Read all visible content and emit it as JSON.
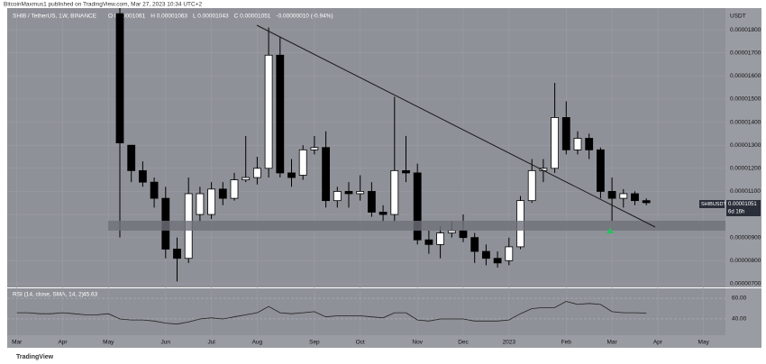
{
  "header": {
    "publisher": "BitcoinMaxmus1 published on TradingView.com, Mar 27, 2023 10:34 UTC+2"
  },
  "footer": {
    "brand": "TradingView"
  },
  "chart_data": {
    "type": "candlestick",
    "title": "SHIB / TetherUS, 1W, BINANCE",
    "ohlc_legend": [
      "O 0.00001061",
      "H 0.00001063",
      "L 0.00001043",
      "C 0.00001051",
      "-0.00000010 (-0.94%)"
    ],
    "currency": "USDT",
    "price_tag": {
      "symbol": "SHIBUSDT",
      "price": "0.00001051",
      "countdown": "6d 16h"
    },
    "up_color": "#ffffff",
    "down_color": "#000000",
    "background": "#8f9198",
    "categories": [
      "Mar",
      null,
      null,
      null,
      "Apr",
      null,
      null,
      null,
      "May",
      null,
      null,
      null,
      null,
      "Jun",
      null,
      null,
      null,
      "Jul",
      null,
      null,
      null,
      "Aug",
      null,
      null,
      null,
      null,
      "Sep",
      null,
      null,
      null,
      "Oct",
      null,
      null,
      null,
      null,
      "Nov",
      null,
      null,
      null,
      "Dec",
      null,
      null,
      null,
      "2023",
      null,
      null,
      null,
      null,
      "Feb",
      null,
      null,
      null,
      "Mar",
      null,
      null,
      null,
      "Apr",
      null,
      null,
      null,
      "May",
      null
    ],
    "open": [
      null,
      null,
      null,
      null,
      null,
      null,
      null,
      null,
      null,
      1.87e-05,
      1.3e-05,
      1.19e-05,
      1.14e-05,
      1.07e-05,
      8.5e-06,
      8.1e-06,
      1e-05,
      1e-05,
      1.11e-05,
      1.07e-05,
      1.15e-05,
      1.16e-05,
      1.2e-05,
      1.69e-05,
      1.18e-05,
      1.17e-05,
      1.28e-05,
      1.29e-05,
      1.06e-05,
      1.1e-05,
      1.09e-05,
      1.1e-05,
      1.01e-05,
      1e-05,
      1.19e-05,
      1.18e-05,
      8.9e-06,
      8.7e-06,
      9.2e-06,
      9.3e-06,
      9e-06,
      8.4e-06,
      8.1e-06,
      8e-06,
      8.6e-06,
      1.06e-05,
      1.19e-05,
      1.2e-05,
      1.42e-05,
      1.28e-05,
      1.33e-05,
      1.28e-05,
      1.1e-05,
      1.07e-05,
      1.09e-05,
      1.06e-05,
      null,
      null,
      null,
      null,
      null,
      null
    ],
    "high": [
      null,
      null,
      null,
      null,
      null,
      null,
      null,
      null,
      null,
      1.9e-05,
      1.3e-05,
      1.23e-05,
      1.16e-05,
      1.12e-05,
      9e-06,
      1.16e-05,
      1.12e-05,
      1.14e-05,
      1.14e-05,
      1.18e-05,
      1.34e-05,
      1.25e-05,
      1.81e-05,
      1.77e-05,
      1.24e-05,
      1.3e-05,
      1.34e-05,
      1.36e-05,
      1.12e-05,
      1.14e-05,
      1.17e-05,
      1.14e-05,
      1.04e-05,
      1.51e-05,
      1.34e-05,
      1.22e-05,
      9.3e-06,
      9.5e-06,
      9.7e-06,
      1e-05,
      9.2e-06,
      8.7e-06,
      8.4e-06,
      9e-06,
      1.08e-05,
      1.24e-05,
      1.24e-05,
      1.57e-05,
      1.49e-05,
      1.36e-05,
      1.35e-05,
      1.29e-05,
      1.16e-05,
      1.11e-05,
      1.1e-05,
      1.07e-05,
      null,
      null,
      null,
      null,
      null,
      null
    ],
    "low": [
      null,
      null,
      null,
      null,
      null,
      null,
      null,
      null,
      null,
      9e-06,
      1.14e-05,
      1.12e-05,
      1.03e-05,
      8.1e-06,
      7.1e-06,
      7.9e-06,
      9.7e-06,
      9.8e-06,
      1.04e-05,
      1.06e-05,
      1.14e-05,
      1.13e-05,
      1.16e-05,
      1.16e-05,
      1.12e-05,
      1.15e-05,
      1.26e-05,
      1.03e-05,
      1.03e-05,
      1.03e-05,
      1.06e-05,
      9.9e-06,
      9.7e-06,
      9.7e-06,
      1.14e-05,
      8.7e-06,
      8.3e-06,
      8.1e-06,
      9e-06,
      8.8e-06,
      7.9e-06,
      7.8e-06,
      7.7e-06,
      7.8e-06,
      8.5e-06,
      1.05e-05,
      1.14e-05,
      1.18e-05,
      1.26e-05,
      1.26e-05,
      1.24e-05,
      1.07e-05,
      9.7e-06,
      1.03e-05,
      1.04e-05,
      1.04e-05,
      null,
      null,
      null,
      null,
      null,
      null
    ],
    "close": [
      null,
      null,
      null,
      null,
      null,
      null,
      null,
      null,
      null,
      1.31e-05,
      1.19e-05,
      1.14e-05,
      1.07e-05,
      8.5e-06,
      8.1e-06,
      1.09e-05,
      1.09e-05,
      1.11e-05,
      1.07e-05,
      1.15e-05,
      1.16e-05,
      1.2e-05,
      1.69e-05,
      1.18e-05,
      1.16e-05,
      1.28e-05,
      1.29e-05,
      1.06e-05,
      1.1e-05,
      1.09e-05,
      1.1e-05,
      1.01e-05,
      1e-05,
      1.19e-05,
      1.18e-05,
      8.9e-06,
      8.7e-06,
      9.2e-06,
      9.3e-06,
      9e-06,
      8.4e-06,
      8.1e-06,
      7.9e-06,
      8.6e-06,
      1.06e-05,
      1.19e-05,
      1.2e-05,
      1.42e-05,
      1.28e-05,
      1.33e-05,
      1.28e-05,
      1.1e-05,
      1.07e-05,
      1.09e-05,
      1.06e-05,
      1.051e-05,
      null,
      null,
      null,
      null,
      null,
      null
    ],
    "ylim": [
      6.84e-06,
      1.894e-05
    ],
    "yticks": [
      {
        "value": 1.8e-05,
        "label": "0.00001800"
      },
      {
        "value": 1.7e-05,
        "label": "0.00001700"
      },
      {
        "value": 1.6e-05,
        "label": "0.00001600"
      },
      {
        "value": 1.5e-05,
        "label": "0.00001500"
      },
      {
        "value": 1.4e-05,
        "label": "0.00001400"
      },
      {
        "value": 1.3e-05,
        "label": "0.00001300"
      },
      {
        "value": 1.2e-05,
        "label": "0.00001200"
      },
      {
        "value": 1.1e-05,
        "label": "0.00001100"
      },
      {
        "value": 1e-05,
        "label": "0.00001000"
      },
      {
        "value": 9e-06,
        "label": "0.00000900"
      },
      {
        "value": 8e-06,
        "label": "0.00000800"
      },
      {
        "value": 7e-06,
        "label": "0.00000700"
      }
    ],
    "grid": true,
    "indicator": {
      "type": "line",
      "title": "RSI (14, close, SMA, 14, 2)",
      "last": "45.63",
      "color": "#222222",
      "values": [
        46,
        46,
        45,
        45,
        46,
        45,
        44,
        44,
        45,
        40,
        39,
        39,
        38,
        36,
        35,
        37,
        40,
        41,
        40,
        42,
        44,
        46,
        52,
        46,
        45,
        46,
        47,
        42,
        43,
        43,
        43,
        42,
        41,
        46,
        46,
        39,
        38,
        40,
        40,
        40,
        38,
        38,
        38,
        39,
        45,
        50,
        51,
        51,
        57,
        54,
        55,
        54,
        47,
        46,
        46,
        45.63,
        null,
        null,
        null,
        null,
        null,
        null
      ],
      "ylim": [
        24.3,
        69.6
      ],
      "yticks": [
        {
          "value": 60,
          "label": "60.00"
        },
        {
          "value": 40,
          "label": "40.00"
        }
      ]
    }
  }
}
